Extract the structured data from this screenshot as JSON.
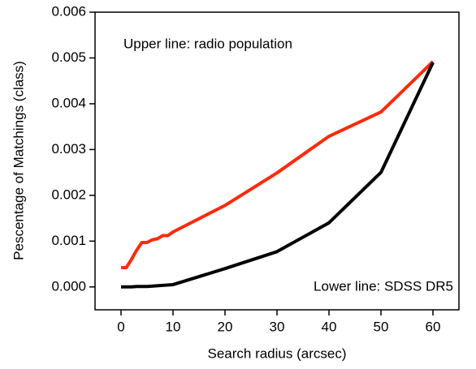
{
  "chart_data": {
    "type": "line",
    "x_label": "Search radius (arcsec)",
    "y_label": "Pescentage of Matchings (class)",
    "annotations": [
      "Upper line: radio population",
      "Lower line: SDSS DR5"
    ],
    "series": [
      {
        "color": "#ff2a0a",
        "x": [
          0,
          1,
          2,
          3,
          4,
          5,
          6,
          7,
          8,
          9,
          10,
          20,
          30,
          40,
          50,
          60
        ],
        "values": [
          0.00042,
          0.00042,
          0.0006,
          0.0008,
          0.00097,
          0.00097,
          0.00103,
          0.00105,
          0.00112,
          0.00112,
          0.0012,
          0.00178,
          0.00249,
          0.00329,
          0.00382,
          0.00492
        ]
      },
      {
        "color": "#000000",
        "x": [
          0,
          1,
          2,
          3,
          4,
          5,
          10,
          20,
          30,
          40,
          50,
          60
        ],
        "values": [
          0,
          0,
          0,
          1e-05,
          1e-05,
          1e-05,
          5e-05,
          0.0004,
          0.00077,
          0.0014,
          0.0025,
          0.0049
        ]
      }
    ],
    "xlim": [
      -5,
      65
    ],
    "xticks": [
      0,
      10,
      20,
      30,
      40,
      50,
      60
    ],
    "ylim": [
      -0.0005,
      0.006
    ],
    "yticks": [
      {
        "value": 0,
        "label": "0.000"
      },
      {
        "value": 0.001,
        "label": "0.001"
      },
      {
        "value": 0.002,
        "label": "0.002"
      },
      {
        "value": 0.003,
        "label": "0.003"
      },
      {
        "value": 0.004,
        "label": "0.004"
      },
      {
        "value": 0.005,
        "label": "0.005"
      },
      {
        "value": 0.006,
        "label": "0.006"
      }
    ]
  }
}
